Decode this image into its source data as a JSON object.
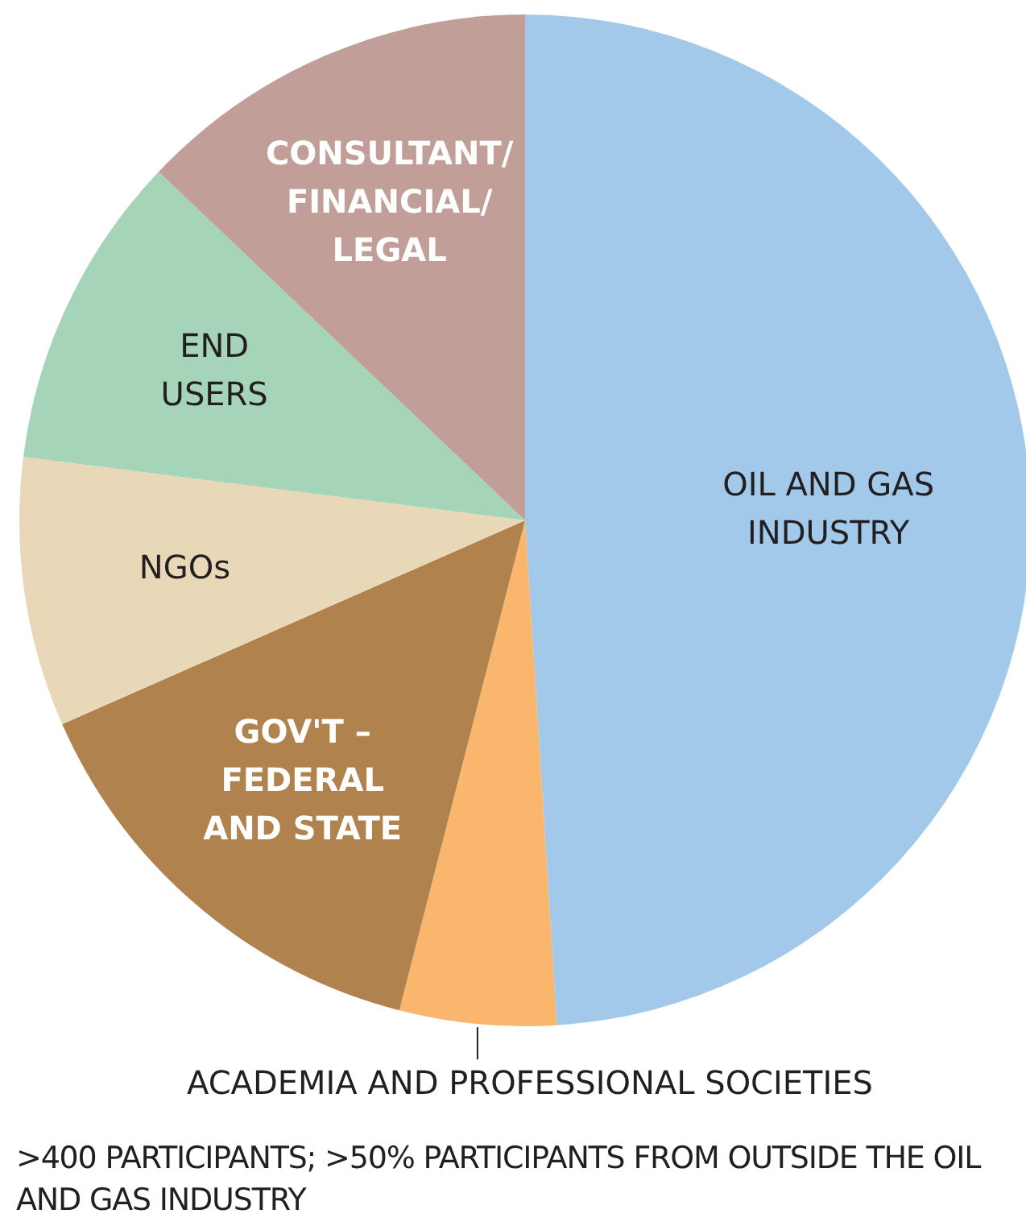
{
  "chart_data": {
    "type": "pie",
    "categories": [
      "OIL AND GAS\nINDUSTRY",
      "ACADEMIA AND PROFESSIONAL SOCIETIES",
      "GOV'T –\nFEDERAL\nAND STATE",
      "NGOs",
      "END\nUSERS",
      "CONSULTANT/\nFINANCIAL/\nLEGAL"
    ],
    "values": [
      49,
      5,
      14.4,
      8.6,
      10.1,
      12.9
    ],
    "colors": [
      "#a3c9ea",
      "#f9b66c",
      "#b0824e",
      "#e8d8b8",
      "#a5d4b8",
      "#c19e98"
    ],
    "legend": false,
    "annotations": [
      ">400 PARTICIPANTS; >50% PARTICIPANTS FROM OUTSIDE THE OIL AND GAS INDUSTRY"
    ]
  }
}
